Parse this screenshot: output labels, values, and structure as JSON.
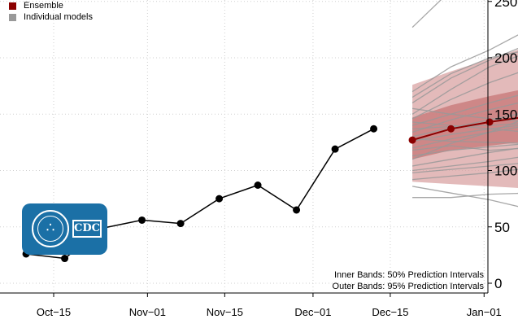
{
  "legend": {
    "ensemble": "Ensemble",
    "individual": "Individual models"
  },
  "notes": {
    "inner": "Inner Bands: 50% Prediction Intervals",
    "outer": "Outer Bands: 95% Prediction Intervals"
  },
  "logo": {
    "text": "CDC"
  },
  "colors": {
    "observed": "#000000",
    "ensemble": "#8b0000",
    "models": "#999999",
    "band_outer": "#d9a3a3",
    "band_inner": "#c47272",
    "logo_bg": "#1b70a6"
  },
  "chart_data": {
    "type": "line",
    "x_tick_labels": [
      "Oct−15",
      "Nov−01",
      "Nov−15",
      "Dec−01",
      "Dec−15",
      "Jan−01"
    ],
    "y_tick_labels": [
      "0",
      "50",
      "100",
      "150",
      "200",
      "250"
    ],
    "ylim": [
      0,
      250
    ],
    "grid": true,
    "legend_position": "top-left",
    "observed": {
      "x": [
        "2020-10-10",
        "2020-10-17",
        "2020-10-24",
        "2020-10-31",
        "2020-11-07",
        "2020-11-14",
        "2020-11-21",
        "2020-11-28",
        "2020-12-05",
        "2020-12-12"
      ],
      "y": [
        26,
        22,
        49,
        56,
        53,
        75,
        87,
        65,
        119,
        137
      ]
    },
    "ensemble": {
      "x": [
        "2020-12-19",
        "2020-12-26",
        "2021-01-02",
        "2021-01-09"
      ],
      "y": [
        127,
        137,
        143,
        148
      ],
      "inner_band": {
        "lower": [
          110,
          118,
          122,
          126
        ],
        "upper": [
          147,
          158,
          166,
          173
        ]
      },
      "outer_band": {
        "lower": [
          90,
          88,
          86,
          84
        ],
        "upper": [
          176,
          188,
          199,
          210
        ]
      }
    },
    "individual_models": {
      "x": [
        "2020-12-19",
        "2020-12-26",
        "2021-01-02",
        "2021-01-09"
      ],
      "values": [
        [
          113,
          118,
          121,
          124
        ],
        [
          120,
          128,
          134,
          140
        ],
        [
          126,
          132,
          137,
          141
        ],
        [
          130,
          138,
          145,
          152
        ],
        [
          134,
          145,
          154,
          162
        ],
        [
          140,
          150,
          160,
          169
        ],
        [
          146,
          163,
          178,
          190
        ],
        [
          150,
          172,
          192,
          205
        ],
        [
          160,
          182,
          198,
          212
        ],
        [
          165,
          186,
          200,
          207
        ],
        [
          170,
          192,
          207,
          225
        ],
        [
          104,
          110,
          116,
          121
        ],
        [
          100,
          104,
          108,
          113
        ],
        [
          98,
          101,
          104,
          107
        ],
        [
          92,
          95,
          98,
          102
        ],
        [
          86,
          80,
          74,
          66
        ],
        [
          76,
          76,
          79,
          80
        ],
        [
          137,
          139,
          140,
          142
        ],
        [
          128,
          126,
          125,
          124
        ],
        [
          118,
          122,
          118,
          120
        ],
        [
          143,
          140,
          137,
          134
        ],
        [
          155,
          150,
          146,
          143
        ],
        [
          110,
          124,
          134,
          147
        ],
        [
          227,
          260,
          280,
          300
        ]
      ]
    }
  }
}
